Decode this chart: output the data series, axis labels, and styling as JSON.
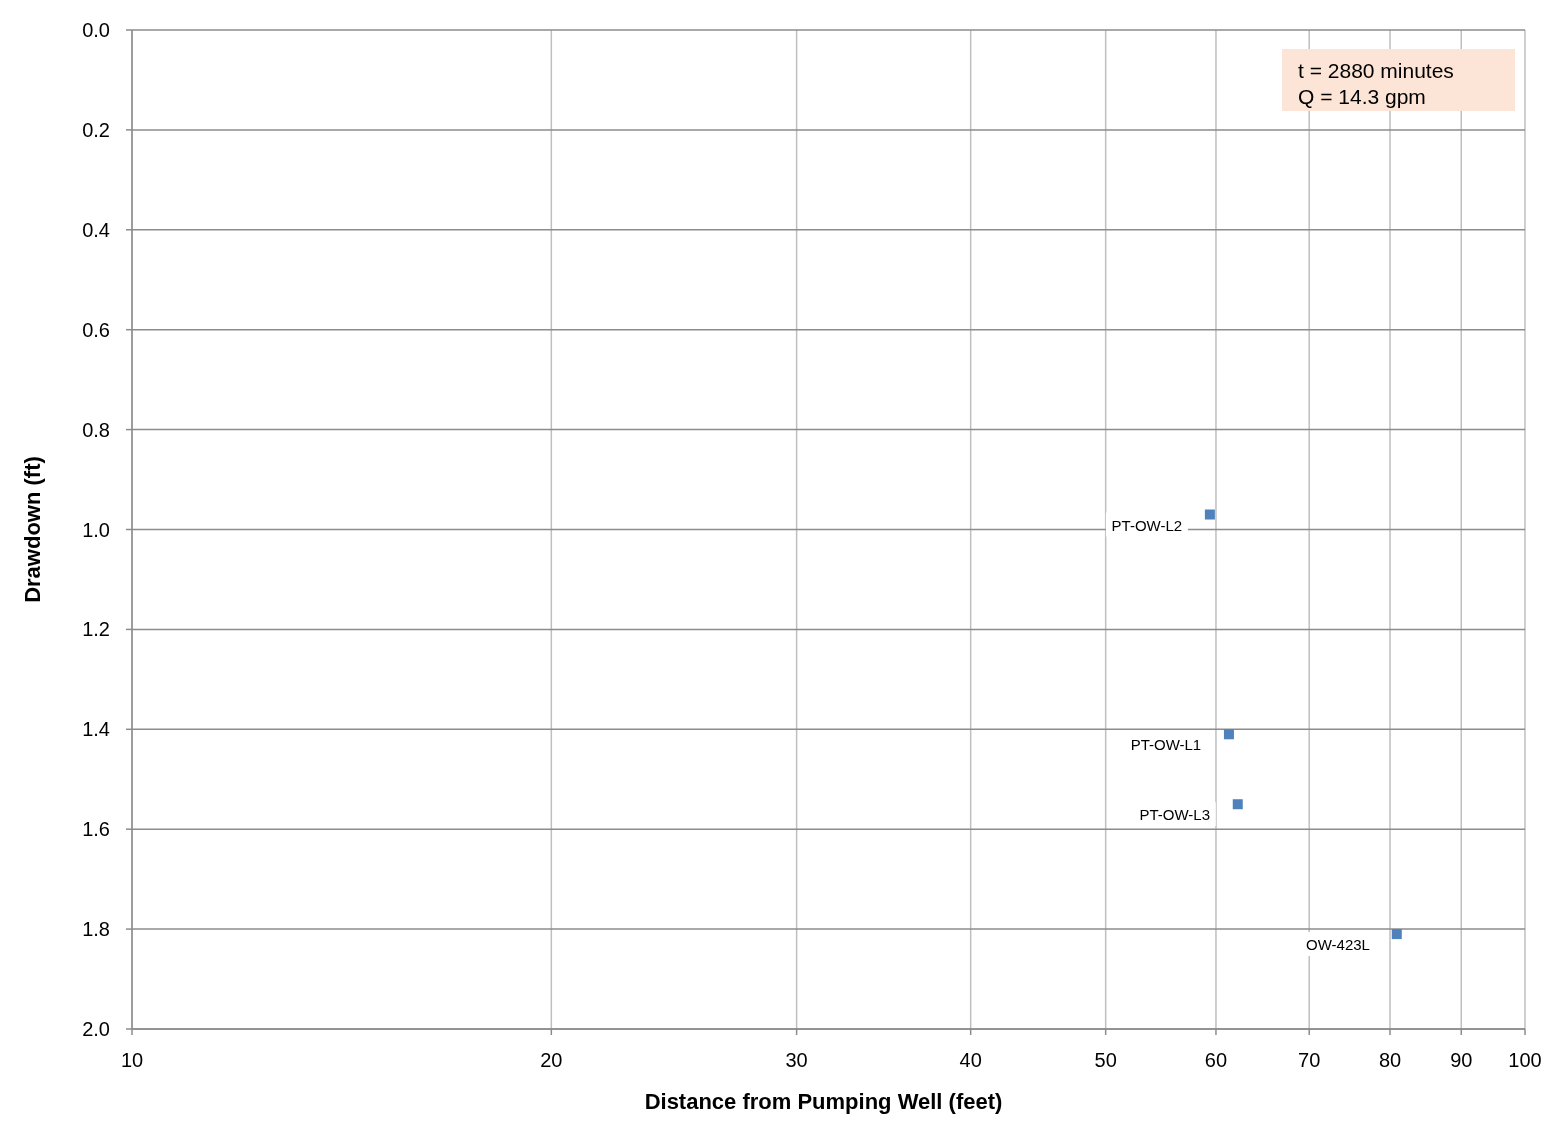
{
  "chart_data": {
    "type": "scatter",
    "xlabel": "Distance from Pumping Well (feet)",
    "ylabel": "Drawdown (ft)",
    "log": "x",
    "xlim": [
      10,
      100
    ],
    "xticks": [
      10,
      20,
      30,
      40,
      50,
      60,
      70,
      80,
      90,
      100
    ],
    "ylim": [
      2,
      0
    ],
    "yticks": [
      {
        "value": 0,
        "label": "0.0"
      },
      0.2,
      0.4,
      0.6,
      0.8,
      {
        "value": 1,
        "label": "1.0"
      },
      1.2,
      1.4,
      1.6,
      1.8,
      {
        "value": 2,
        "label": "2.0"
      }
    ],
    "grid": true,
    "marker": "square",
    "series": [
      {
        "color": "#4f81bd",
        "x": [
          59.4,
          61.3,
          62.2,
          80.9
        ],
        "values": [
          0.97,
          1.41,
          1.55,
          1.81
        ]
      }
    ],
    "annotations": [
      "t = 2880 minutes",
      "Q = 14.3 gpm",
      {
        "text": "PT-OW-L2",
        "x": 59.4,
        "y": 0.97
      },
      {
        "text": "PT-OW-L1",
        "x": 61.3,
        "y": 1.41
      },
      {
        "text": "PT-OW-L3",
        "x": 62.2,
        "y": 1.55
      },
      {
        "text": "OW-423L",
        "x": 80.9,
        "y": 1.81
      }
    ]
  }
}
